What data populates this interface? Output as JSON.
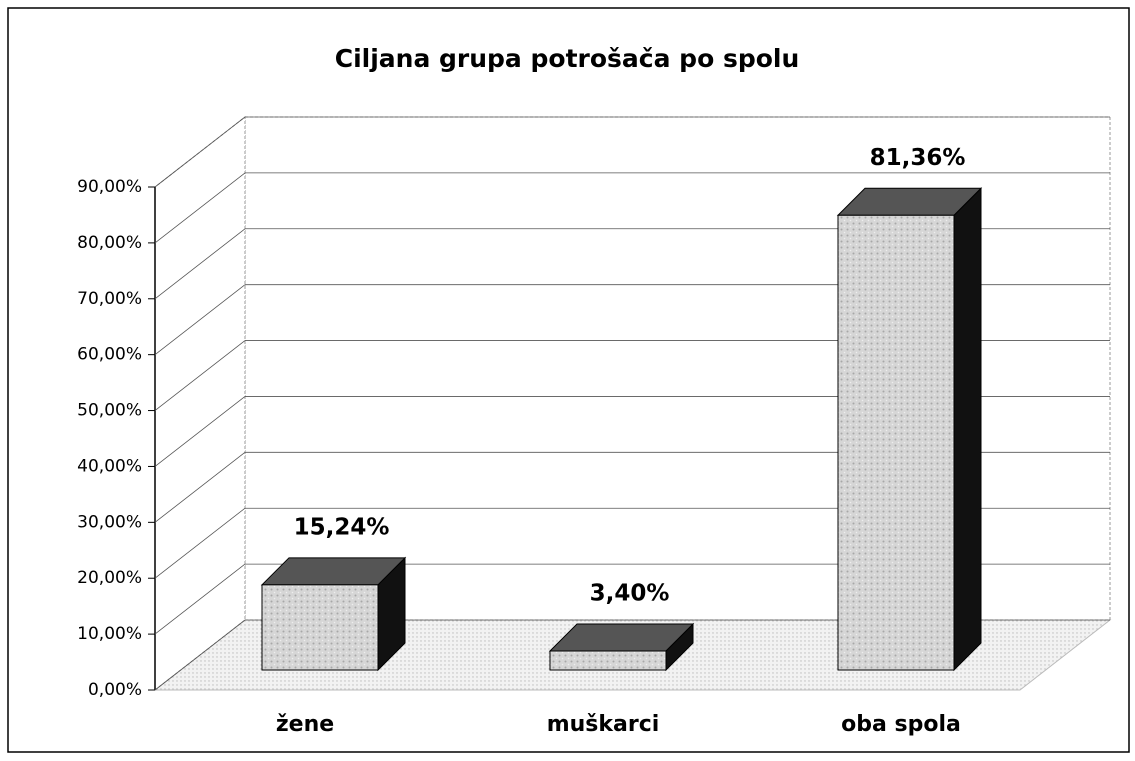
{
  "chart_data": {
    "type": "bar3d",
    "title": "Ciljana grupa potrošača po spolu",
    "categories": [
      "žene",
      "muškarci",
      "oba spola"
    ],
    "values": [
      15.24,
      3.4,
      81.36
    ],
    "value_labels": [
      "15,24%",
      "3,40%",
      "81,36%"
    ],
    "color": "#c8c8c8",
    "ylim": [
      0,
      90
    ],
    "yticks": [
      {
        "value": 0,
        "label": "0,00%"
      },
      {
        "value": 10,
        "label": "10,00%"
      },
      {
        "value": 20,
        "label": "20,00%"
      },
      {
        "value": 30,
        "label": "30,00%"
      },
      {
        "value": 40,
        "label": "40,00%"
      },
      {
        "value": 50,
        "label": "50,00%"
      },
      {
        "value": 60,
        "label": "60,00%"
      },
      {
        "value": 70,
        "label": "70,00%"
      },
      {
        "value": 80,
        "label": "80,00%"
      },
      {
        "value": 90,
        "label": "90,00%"
      }
    ],
    "grid": true
  }
}
